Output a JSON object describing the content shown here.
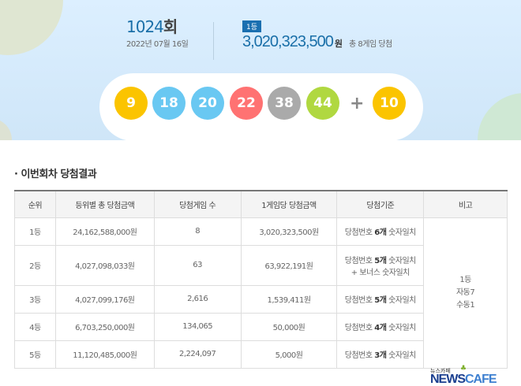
{
  "draw": {
    "round_number": "1024",
    "round_suffix": "회",
    "date": "2022년 07월 16일",
    "rank_badge": "1등",
    "first_prize": "3,020,323,500",
    "won": "원",
    "total_winners": "총 8게임 당첨"
  },
  "numbers": [
    {
      "value": "9",
      "color": "#fbc400"
    },
    {
      "value": "18",
      "color": "#69c8f2"
    },
    {
      "value": "20",
      "color": "#69c8f2"
    },
    {
      "value": "22",
      "color": "#ff7272"
    },
    {
      "value": "38",
      "color": "#aaaaaa"
    },
    {
      "value": "44",
      "color": "#b0d840"
    }
  ],
  "plus": "+",
  "bonus": {
    "value": "10",
    "color": "#fbc400"
  },
  "section_title": "· 이번회차 당첨결과",
  "table": {
    "headers": [
      "순위",
      "등위별 총 당첨금액",
      "당첨게임 수",
      "1게임당 당첨금액",
      "당첨기준",
      "비고"
    ],
    "rows": [
      {
        "rank": "1등",
        "total": "24,162,588,000원",
        "count": "8",
        "per_game": "3,020,323,500원",
        "crit_pre": "당첨번호 ",
        "crit_bold": "6개",
        "crit_post": " 숫자일치",
        "crit_line2": ""
      },
      {
        "rank": "2등",
        "total": "4,027,098,033원",
        "count": "63",
        "per_game": "63,922,191원",
        "crit_pre": "당첨번호 ",
        "crit_bold": "5개",
        "crit_post": " 숫자일치",
        "crit_line2": "+ 보너스 숫자일치"
      },
      {
        "rank": "3등",
        "total": "4,027,099,176원",
        "count": "2,616",
        "per_game": "1,539,411원",
        "crit_pre": "당첨번호 ",
        "crit_bold": "5개",
        "crit_post": " 숫자일치",
        "crit_line2": ""
      },
      {
        "rank": "4등",
        "total": "6,703,250,000원",
        "count": "134,065",
        "per_game": "50,000원",
        "crit_pre": "당첨번호 ",
        "crit_bold": "4개",
        "crit_post": " 숫자일치",
        "crit_line2": ""
      },
      {
        "rank": "5등",
        "total": "11,120,485,000원",
        "count": "2,224,097",
        "per_game": "5,000원",
        "crit_pre": "당첨번호 ",
        "crit_bold": "3개",
        "crit_post": " 숫자일치",
        "crit_line2": ""
      }
    ],
    "note": [
      "1등",
      "자동7",
      "수동1"
    ]
  },
  "watermark": {
    "small": "뉴스카페",
    "news": "NEWS",
    "cafe": "CAFE"
  }
}
